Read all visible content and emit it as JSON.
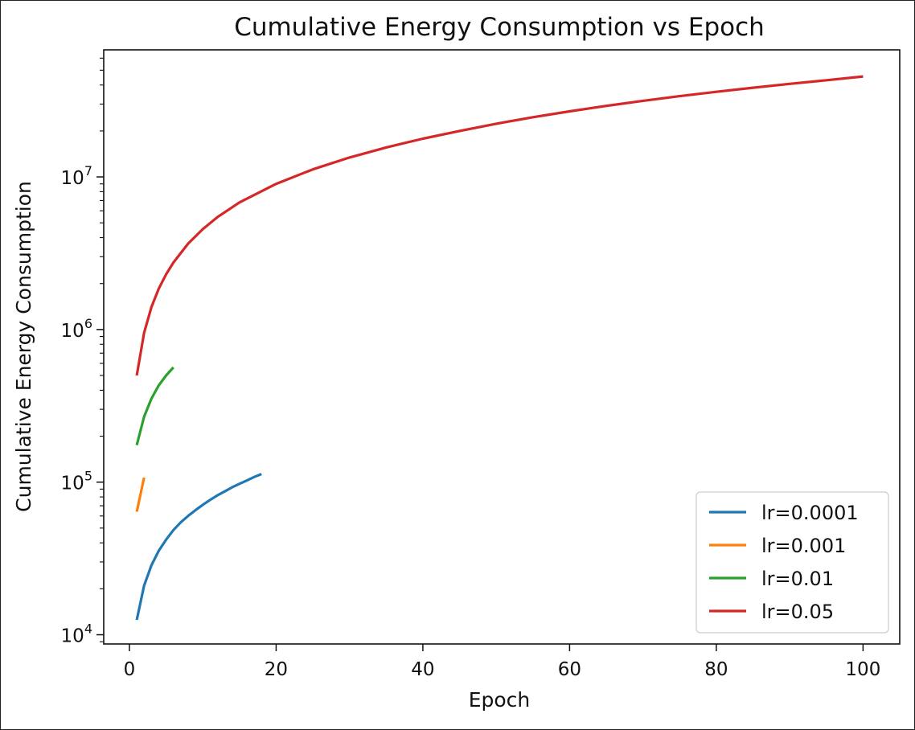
{
  "chart_data": {
    "type": "line",
    "title": "Cumulative Energy Consumption vs Epoch",
    "xlabel": "Epoch",
    "ylabel": "Cumulative Energy Consumption",
    "x_ticks": [
      0,
      20,
      40,
      60,
      80,
      100
    ],
    "y_ticks": [
      {
        "base": "10",
        "exp": "4"
      },
      {
        "base": "10",
        "exp": "5"
      },
      {
        "base": "10",
        "exp": "6"
      },
      {
        "base": "10",
        "exp": "7"
      }
    ],
    "xlim": [
      -3.5,
      105
    ],
    "ylim": [
      8700,
      68000000
    ],
    "yscale": "log",
    "grid": false,
    "legend_position": "lower-right",
    "series": [
      {
        "name": "lr=0.0001",
        "color": "#1f77b4",
        "x": [
          1,
          2,
          3,
          4,
          5,
          6,
          7,
          8,
          9,
          10,
          11,
          12,
          13,
          14,
          15,
          16,
          17,
          18
        ],
        "y": [
          12500,
          21000,
          28500,
          35500,
          42000,
          48500,
          54500,
          60000,
          65500,
          71000,
          76500,
          82000,
          87000,
          92500,
          97500,
          102500,
          108000,
          113000
        ]
      },
      {
        "name": "lr=0.001",
        "color": "#ff7f0e",
        "x": [
          1,
          2
        ],
        "y": [
          64000,
          107000
        ]
      },
      {
        "name": "lr=0.01",
        "color": "#2ca02c",
        "x": [
          1,
          2,
          3,
          4,
          5,
          6
        ],
        "y": [
          175000,
          268000,
          352000,
          430000,
          500000,
          565000
        ]
      },
      {
        "name": "lr=0.05",
        "color": "#d62728",
        "x": [
          1,
          2,
          3,
          4,
          5,
          6,
          8,
          10,
          12,
          15,
          20,
          25,
          30,
          35,
          40,
          45,
          50,
          55,
          60,
          65,
          70,
          75,
          80,
          85,
          90,
          95,
          100
        ],
        "y": [
          500000,
          950000,
          1400000,
          1850000,
          2300000,
          2750000,
          3650000,
          4550000,
          5450000,
          6800000,
          9000000,
          11200000,
          13400000,
          15600000,
          17800000,
          20000000,
          22300000,
          24600000,
          26900000,
          29200000,
          31500000,
          33800000,
          36100000,
          38400000,
          40700000,
          43000000,
          45500000
        ]
      }
    ]
  }
}
